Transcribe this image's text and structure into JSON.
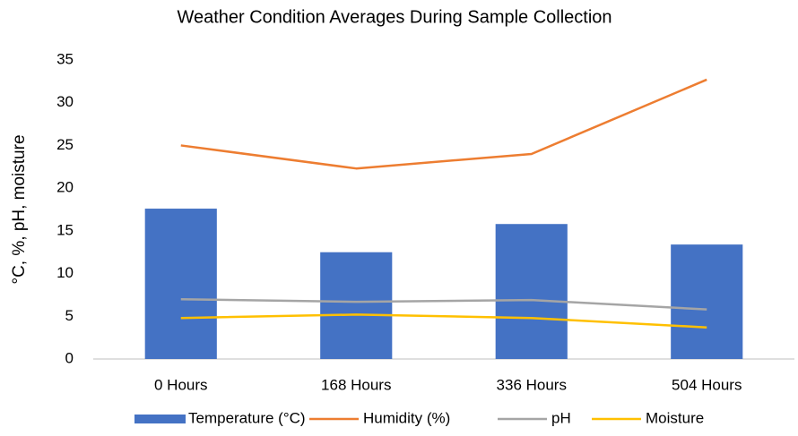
{
  "chart_data": {
    "type": "bar",
    "title": "Weather Condition Averages During Sample Collection",
    "y_label": "°C, %, pH, moisture",
    "categories": [
      "0 Hours",
      "168 Hours",
      "336 Hours",
      "504 Hours"
    ],
    "series": [
      {
        "name": "Temperature (°C)",
        "type": "bar",
        "color": "#4472c4",
        "values": [
          17.6,
          12.5,
          15.8,
          13.4
        ]
      },
      {
        "name": "Humidity (%)",
        "type": "line",
        "color": "#ed7d31",
        "values": [
          25,
          22.3,
          24,
          32.7
        ]
      },
      {
        "name": "pH",
        "type": "line",
        "color": "#a5a5a5",
        "values": [
          7,
          6.7,
          6.9,
          5.8
        ]
      },
      {
        "name": "Moisture",
        "type": "line",
        "color": "#ffc000",
        "values": [
          4.8,
          5.2,
          4.8,
          3.7
        ]
      }
    ],
    "ylim": [
      0,
      35
    ],
    "yticks": [
      0,
      5,
      10,
      15,
      20,
      25,
      30,
      35
    ],
    "grid": false,
    "legend": "bottom"
  }
}
